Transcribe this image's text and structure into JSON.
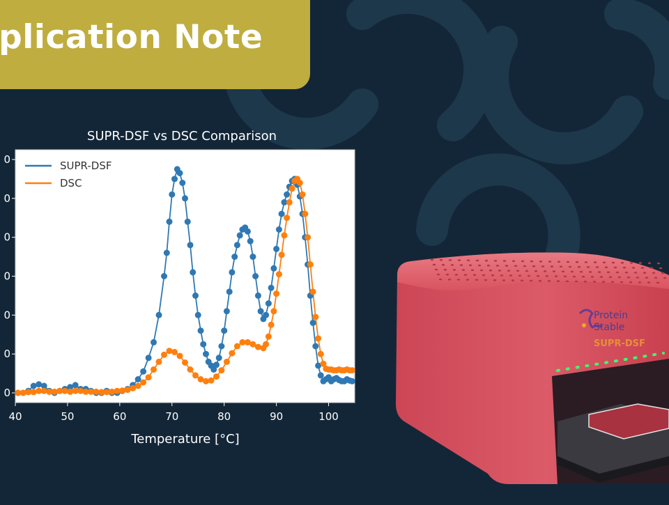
{
  "banner": {
    "title": "pplication Note"
  },
  "colors": {
    "background": "#132637",
    "banner": "#bfad3f",
    "supr": "#2f78b3",
    "dsc": "#ff7f0e",
    "device": "#d9515f"
  },
  "device": {
    "brand_line1": "Protein",
    "brand_line2": "Stable",
    "model": "SUPR-DSF"
  },
  "chart_data": {
    "type": "scatter",
    "title": "SUPR-DSF vs DSC Comparison",
    "xlabel": "Temperature [°C]",
    "ylabel": "",
    "xlim": [
      40,
      105
    ],
    "ylim": [
      -0.25,
      6.25
    ],
    "x_ticks": [
      "40",
      "50",
      "60",
      "70",
      "80",
      "90",
      "100"
    ],
    "y_ticks": [
      "0",
      "0",
      "0",
      "0",
      "0",
      "0",
      "0"
    ],
    "legend": "top-left",
    "grid": false,
    "series": [
      {
        "name": "SUPR-DSF",
        "color": "#2f78b3",
        "points": [
          [
            40.5,
            0.0
          ],
          [
            41.5,
            0.0
          ],
          [
            42.5,
            0.05
          ],
          [
            43.5,
            0.18
          ],
          [
            44.5,
            0.22
          ],
          [
            45.5,
            0.18
          ],
          [
            46.5,
            0.05
          ],
          [
            47.5,
            0.0
          ],
          [
            48.5,
            0.05
          ],
          [
            49.5,
            0.1
          ],
          [
            50.5,
            0.15
          ],
          [
            51.5,
            0.2
          ],
          [
            52.5,
            0.1
          ],
          [
            53.5,
            0.1
          ],
          [
            54.5,
            0.05
          ],
          [
            55.5,
            0.0
          ],
          [
            56.5,
            0.0
          ],
          [
            57.5,
            0.05
          ],
          [
            58.5,
            0.0
          ],
          [
            59.5,
            0.0
          ],
          [
            60.5,
            0.05
          ],
          [
            61.5,
            0.1
          ],
          [
            62.5,
            0.2
          ],
          [
            63.5,
            0.35
          ],
          [
            64.5,
            0.55
          ],
          [
            65.5,
            0.9
          ],
          [
            66.5,
            1.3
          ],
          [
            67.5,
            2.0
          ],
          [
            68.5,
            3.0
          ],
          [
            69.0,
            3.6
          ],
          [
            69.5,
            4.4
          ],
          [
            70.0,
            5.1
          ],
          [
            70.5,
            5.5
          ],
          [
            71.0,
            5.75
          ],
          [
            71.5,
            5.65
          ],
          [
            72.0,
            5.4
          ],
          [
            72.5,
            5.0
          ],
          [
            73.0,
            4.4
          ],
          [
            73.5,
            3.8
          ],
          [
            74.0,
            3.1
          ],
          [
            74.5,
            2.5
          ],
          [
            75.0,
            2.0
          ],
          [
            75.5,
            1.6
          ],
          [
            76.0,
            1.25
          ],
          [
            76.5,
            1.0
          ],
          [
            77.0,
            0.8
          ],
          [
            77.5,
            0.7
          ],
          [
            78.0,
            0.6
          ],
          [
            78.5,
            0.72
          ],
          [
            79.0,
            0.9
          ],
          [
            79.5,
            1.2
          ],
          [
            80.0,
            1.6
          ],
          [
            80.5,
            2.1
          ],
          [
            81.0,
            2.6
          ],
          [
            81.5,
            3.1
          ],
          [
            82.0,
            3.5
          ],
          [
            82.5,
            3.8
          ],
          [
            83.0,
            4.05
          ],
          [
            83.5,
            4.2
          ],
          [
            84.0,
            4.25
          ],
          [
            84.5,
            4.15
          ],
          [
            85.0,
            3.9
          ],
          [
            85.5,
            3.5
          ],
          [
            86.0,
            3.0
          ],
          [
            86.5,
            2.5
          ],
          [
            87.0,
            2.1
          ],
          [
            87.5,
            1.9
          ],
          [
            88.0,
            2.0
          ],
          [
            88.5,
            2.3
          ],
          [
            89.0,
            2.7
          ],
          [
            89.5,
            3.2
          ],
          [
            90.0,
            3.7
          ],
          [
            90.5,
            4.2
          ],
          [
            91.0,
            4.6
          ],
          [
            91.5,
            4.9
          ],
          [
            92.0,
            5.1
          ],
          [
            92.5,
            5.3
          ],
          [
            93.0,
            5.45
          ],
          [
            93.5,
            5.5
          ],
          [
            94.0,
            5.35
          ],
          [
            94.5,
            5.05
          ],
          [
            95.0,
            4.6
          ],
          [
            95.5,
            4.0
          ],
          [
            96.0,
            3.3
          ],
          [
            96.5,
            2.5
          ],
          [
            97.0,
            1.8
          ],
          [
            97.5,
            1.2
          ],
          [
            98.0,
            0.7
          ],
          [
            98.5,
            0.45
          ],
          [
            99.0,
            0.3
          ],
          [
            99.5,
            0.35
          ],
          [
            100.0,
            0.4
          ],
          [
            100.5,
            0.3
          ],
          [
            101.0,
            0.35
          ],
          [
            101.5,
            0.38
          ],
          [
            102.0,
            0.33
          ],
          [
            102.5,
            0.3
          ],
          [
            103.0,
            0.3
          ],
          [
            103.5,
            0.35
          ],
          [
            104.0,
            0.32
          ],
          [
            104.5,
            0.3
          ]
        ]
      },
      {
        "name": "DSC",
        "color": "#ff7f0e",
        "points": [
          [
            40.5,
            0.0
          ],
          [
            41.5,
            0.0
          ],
          [
            42.5,
            0.02
          ],
          [
            43.5,
            0.02
          ],
          [
            44.5,
            0.05
          ],
          [
            45.5,
            0.05
          ],
          [
            46.5,
            0.03
          ],
          [
            47.5,
            0.03
          ],
          [
            48.5,
            0.05
          ],
          [
            49.5,
            0.05
          ],
          [
            50.5,
            0.03
          ],
          [
            51.5,
            0.05
          ],
          [
            52.5,
            0.05
          ],
          [
            53.5,
            0.03
          ],
          [
            54.5,
            0.03
          ],
          [
            55.5,
            0.03
          ],
          [
            56.5,
            0.02
          ],
          [
            57.5,
            0.02
          ],
          [
            58.5,
            0.03
          ],
          [
            59.5,
            0.05
          ],
          [
            60.5,
            0.06
          ],
          [
            61.5,
            0.08
          ],
          [
            62.5,
            0.12
          ],
          [
            63.5,
            0.18
          ],
          [
            64.5,
            0.27
          ],
          [
            65.5,
            0.4
          ],
          [
            66.5,
            0.6
          ],
          [
            67.5,
            0.8
          ],
          [
            68.5,
            0.98
          ],
          [
            69.5,
            1.08
          ],
          [
            70.5,
            1.05
          ],
          [
            71.5,
            0.95
          ],
          [
            72.5,
            0.78
          ],
          [
            73.5,
            0.6
          ],
          [
            74.5,
            0.45
          ],
          [
            75.5,
            0.35
          ],
          [
            76.5,
            0.3
          ],
          [
            77.5,
            0.32
          ],
          [
            78.5,
            0.42
          ],
          [
            79.5,
            0.58
          ],
          [
            80.5,
            0.8
          ],
          [
            81.5,
            1.02
          ],
          [
            82.5,
            1.2
          ],
          [
            83.5,
            1.3
          ],
          [
            84.5,
            1.3
          ],
          [
            85.5,
            1.25
          ],
          [
            86.5,
            1.18
          ],
          [
            87.5,
            1.15
          ],
          [
            88.0,
            1.25
          ],
          [
            88.5,
            1.45
          ],
          [
            89.0,
            1.75
          ],
          [
            89.5,
            2.1
          ],
          [
            90.0,
            2.55
          ],
          [
            90.5,
            3.05
          ],
          [
            91.0,
            3.55
          ],
          [
            91.5,
            4.05
          ],
          [
            92.0,
            4.5
          ],
          [
            92.5,
            4.9
          ],
          [
            93.0,
            5.25
          ],
          [
            93.5,
            5.45
          ],
          [
            94.0,
            5.5
          ],
          [
            94.5,
            5.4
          ],
          [
            95.0,
            5.1
          ],
          [
            95.5,
            4.6
          ],
          [
            96.0,
            4.0
          ],
          [
            96.5,
            3.3
          ],
          [
            97.0,
            2.6
          ],
          [
            97.5,
            1.95
          ],
          [
            98.0,
            1.4
          ],
          [
            98.5,
            1.0
          ],
          [
            99.0,
            0.75
          ],
          [
            99.5,
            0.62
          ],
          [
            100.0,
            0.6
          ],
          [
            100.5,
            0.6
          ],
          [
            101.0,
            0.58
          ],
          [
            101.5,
            0.58
          ],
          [
            102.0,
            0.6
          ],
          [
            102.5,
            0.58
          ],
          [
            103.0,
            0.58
          ],
          [
            103.5,
            0.6
          ],
          [
            104.0,
            0.58
          ],
          [
            104.5,
            0.58
          ]
        ]
      }
    ]
  }
}
